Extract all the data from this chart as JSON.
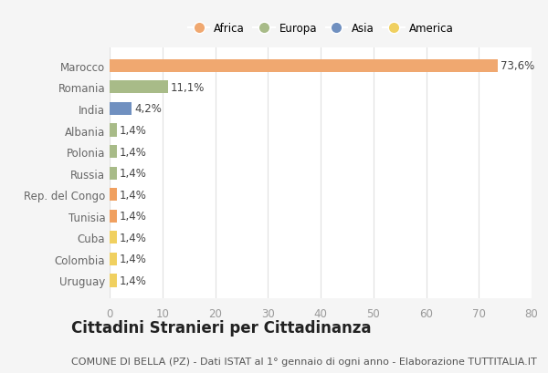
{
  "categories": [
    "Marocco",
    "Romania",
    "India",
    "Albania",
    "Polonia",
    "Russia",
    "Rep. del Congo",
    "Tunisia",
    "Cuba",
    "Colombia",
    "Uruguay"
  ],
  "values": [
    73.6,
    11.1,
    4.2,
    1.4,
    1.4,
    1.4,
    1.4,
    1.4,
    1.4,
    1.4,
    1.4
  ],
  "labels": [
    "73,6%",
    "11,1%",
    "4,2%",
    "1,4%",
    "1,4%",
    "1,4%",
    "1,4%",
    "1,4%",
    "1,4%",
    "1,4%",
    "1,4%"
  ],
  "colors": [
    "#F0A870",
    "#A8BB88",
    "#7090C0",
    "#A8BB88",
    "#A8BB88",
    "#A8BB88",
    "#F0A060",
    "#F0A060",
    "#F0D060",
    "#F0D060",
    "#F0D060"
  ],
  "legend_labels": [
    "Africa",
    "Europa",
    "Asia",
    "America"
  ],
  "legend_colors": [
    "#F0A870",
    "#A8BB88",
    "#7090C0",
    "#F0D060"
  ],
  "xlim": [
    0,
    80
  ],
  "xticks": [
    0,
    10,
    20,
    30,
    40,
    50,
    60,
    70,
    80
  ],
  "title": "Cittadini Stranieri per Cittadinanza",
  "subtitle": "COMUNE DI BELLA (PZ) - Dati ISTAT al 1° gennaio di ogni anno - Elaborazione TUTTITALIA.IT",
  "bg_color": "#f5f5f5",
  "plot_bg": "#ffffff",
  "grid_color": "#e0e0e0",
  "label_fontsize": 8.5,
  "title_fontsize": 12,
  "subtitle_fontsize": 8,
  "tick_color": "#999999",
  "yticklabel_color": "#666666"
}
